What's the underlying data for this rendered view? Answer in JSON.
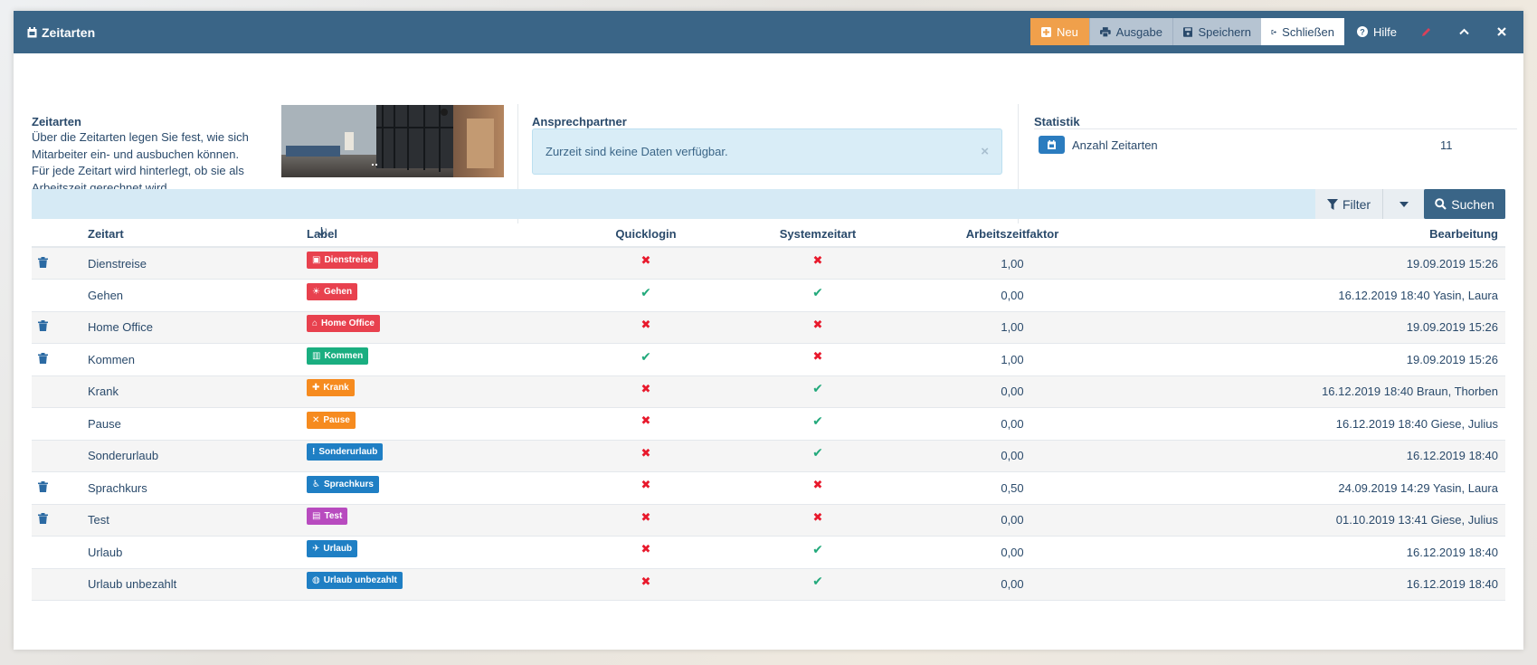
{
  "window": {
    "title": "Zeitarten",
    "buttons": {
      "new": "Neu",
      "output": "Ausgabe",
      "save": "Speichern",
      "close": "Schließen",
      "help": "Hilfe"
    }
  },
  "about": {
    "heading": "Zeitarten",
    "text": "Über die Zeitarten legen Sie fest, wie sich Mitarbeiter ein- und ausbuchen können. Für jede Zeitart wird hinterlegt, ob sie als Arbeitszeit gerechnet wird."
  },
  "contacts": {
    "heading": "Ansprechpartner",
    "empty_message": "Zurzeit sind keine Daten verfügbar."
  },
  "stats": {
    "heading": "Statistik",
    "label": "Anzahl Zeitarten",
    "value": "11"
  },
  "filter": {
    "filter_label": "Filter",
    "search_label": "Suchen"
  },
  "table": {
    "headers": {
      "name": "Zeitart",
      "label": "Label",
      "quicklogin": "Quicklogin",
      "system": "Systemzeitart",
      "factor": "Arbeitszeitfaktor",
      "edited": "Bearbeitung"
    },
    "rows": [
      {
        "deletable": true,
        "name": "Dienstreise",
        "label": "Dienstreise",
        "label_color": "#e8414e",
        "label_icon": "briefcase",
        "quicklogin": false,
        "system": false,
        "factor": "1,00",
        "edited": "19.09.2019 15:26"
      },
      {
        "deletable": false,
        "name": "Gehen",
        "label": "Gehen",
        "label_color": "#e8414e",
        "label_icon": "walking",
        "quicklogin": true,
        "system": true,
        "factor": "0,00",
        "edited": "16.12.2019 18:40 Yasin, Laura"
      },
      {
        "deletable": true,
        "name": "Home Office",
        "label": "Home Office",
        "label_color": "#e8414e",
        "label_icon": "home",
        "quicklogin": false,
        "system": false,
        "factor": "1,00",
        "edited": "19.09.2019 15:26"
      },
      {
        "deletable": true,
        "name": "Kommen",
        "label": "Kommen",
        "label_color": "#1aae80",
        "label_icon": "building",
        "quicklogin": true,
        "system": false,
        "factor": "1,00",
        "edited": "19.09.2019 15:26"
      },
      {
        "deletable": false,
        "name": "Krank",
        "label": "Krank",
        "label_color": "#f68b1f",
        "label_icon": "medkit",
        "quicklogin": false,
        "system": true,
        "factor": "0,00",
        "edited": "16.12.2019 18:40 Braun, Thorben"
      },
      {
        "deletable": false,
        "name": "Pause",
        "label": "Pause",
        "label_color": "#f68b1f",
        "label_icon": "cutlery",
        "quicklogin": false,
        "system": true,
        "factor": "0,00",
        "edited": "16.12.2019 18:40 Giese, Julius"
      },
      {
        "deletable": false,
        "name": "Sonderurlaub",
        "label": "Sonderurlaub",
        "label_color": "#1f7fc4",
        "label_icon": "exclamation",
        "quicklogin": false,
        "system": true,
        "factor": "0,00",
        "edited": "16.12.2019 18:40"
      },
      {
        "deletable": true,
        "name": "Sprachkurs",
        "label": "Sprachkurs",
        "label_color": "#1f7fc4",
        "label_icon": "assistive",
        "quicklogin": false,
        "system": false,
        "factor": "0,50",
        "edited": "24.09.2019 14:29 Yasin, Laura"
      },
      {
        "deletable": true,
        "name": "Test",
        "label": "Test",
        "label_color": "#b84bbf",
        "label_icon": "id-card",
        "quicklogin": false,
        "system": false,
        "factor": "0,00",
        "edited": "01.10.2019 13:41 Giese, Julius"
      },
      {
        "deletable": false,
        "name": "Urlaub",
        "label": "Urlaub",
        "label_color": "#1f7fc4",
        "label_icon": "plane",
        "quicklogin": false,
        "system": true,
        "factor": "0,00",
        "edited": "16.12.2019 18:40"
      },
      {
        "deletable": false,
        "name": "Urlaub unbezahlt",
        "label": "Urlaub unbezahlt",
        "label_color": "#1f7fc4",
        "label_icon": "globe",
        "quicklogin": false,
        "system": true,
        "factor": "0,00",
        "edited": "16.12.2019 18:40"
      }
    ]
  }
}
